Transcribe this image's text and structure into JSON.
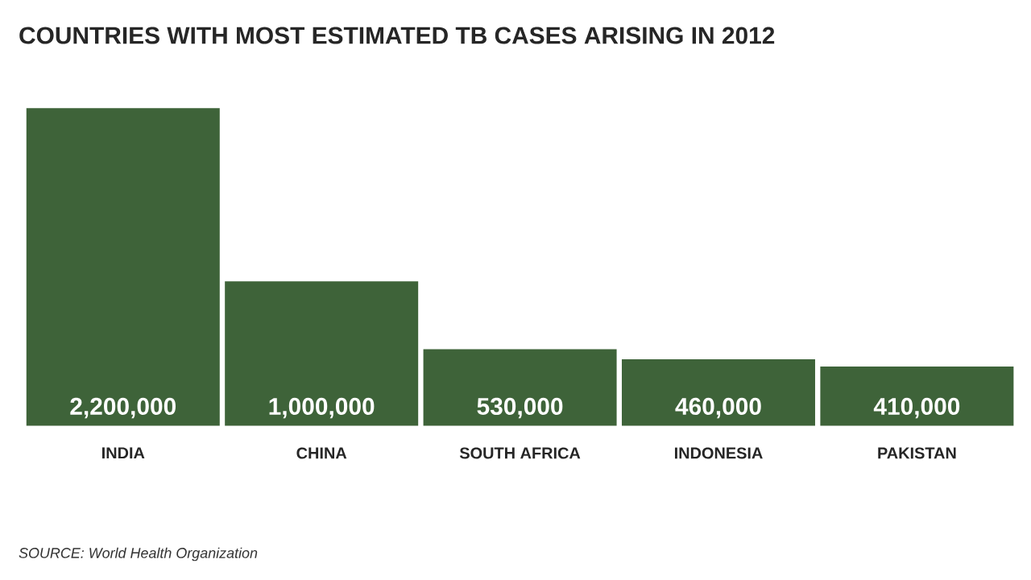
{
  "chart_data": {
    "type": "bar",
    "title": "COUNTRIES WITH MOST ESTIMATED TB CASES ARISING IN 2012",
    "categories": [
      "INDIA",
      "CHINA",
      "SOUTH AFRICA",
      "INDONESIA",
      "PAKISTAN"
    ],
    "values": [
      2200000,
      1000000,
      530000,
      460000,
      410000
    ],
    "value_labels": [
      "2,200,000",
      "1,000,000",
      "530,000",
      "460,000",
      "410,000"
    ],
    "color": "#3e6339",
    "annotations": [
      "SOURCE: World Health Organization"
    ]
  }
}
